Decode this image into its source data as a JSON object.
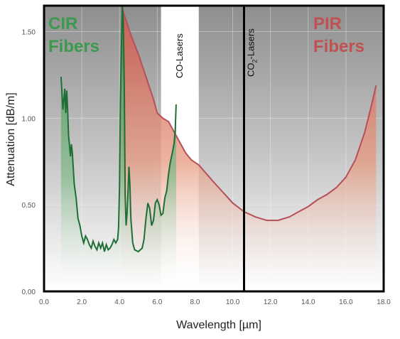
{
  "chart_data": {
    "type": "line",
    "xlabel": "Wavelength",
    "xunit": "[µm]",
    "ylabel": "Attenuation",
    "yunit": "[dB/m]",
    "xlim": [
      0,
      18
    ],
    "ylim": [
      0,
      1.65
    ],
    "x_ticks": [
      "0.0",
      "2.0",
      "4.0",
      "6.0",
      "8.0",
      "10.0",
      "12.0",
      "14.0",
      "16.0",
      "18.0"
    ],
    "y_ticks": [
      "0.00",
      "0.50",
      "1.00",
      "1.50"
    ],
    "regions": [
      {
        "label": "CO-Lasers",
        "x_range": [
          6.2,
          8.2
        ],
        "color": "#ffffff"
      },
      {
        "label": "CO",
        "subscript": "2",
        "label_suffix": "-Lasers",
        "x": 10.6,
        "color": "#000000"
      }
    ],
    "series": [
      {
        "name": "CIR Fibers",
        "color": "#2e8b46",
        "fill": "#5fa36a",
        "points": [
          [
            0.9,
            1.24
          ],
          [
            1.0,
            1.05
          ],
          [
            1.05,
            1.11
          ],
          [
            1.1,
            1.17
          ],
          [
            1.15,
            1.03
          ],
          [
            1.2,
            1.16
          ],
          [
            1.25,
            1.05
          ],
          [
            1.3,
            0.9
          ],
          [
            1.35,
            0.84
          ],
          [
            1.4,
            0.78
          ],
          [
            1.45,
            0.85
          ],
          [
            1.5,
            0.8
          ],
          [
            1.6,
            0.62
          ],
          [
            1.7,
            0.54
          ],
          [
            1.8,
            0.42
          ],
          [
            1.9,
            0.38
          ],
          [
            2.0,
            0.32
          ],
          [
            2.1,
            0.28
          ],
          [
            2.2,
            0.32
          ],
          [
            2.3,
            0.3
          ],
          [
            2.4,
            0.27
          ],
          [
            2.5,
            0.25
          ],
          [
            2.6,
            0.29
          ],
          [
            2.7,
            0.26
          ],
          [
            2.8,
            0.24
          ],
          [
            2.9,
            0.28
          ],
          [
            3.0,
            0.25
          ],
          [
            3.1,
            0.28
          ],
          [
            3.2,
            0.23
          ],
          [
            3.3,
            0.27
          ],
          [
            3.4,
            0.24
          ],
          [
            3.5,
            0.25
          ],
          [
            3.6,
            0.27
          ],
          [
            3.7,
            0.3
          ],
          [
            3.8,
            0.28
          ],
          [
            3.9,
            0.3
          ],
          [
            3.95,
            0.37
          ],
          [
            4.0,
            0.6
          ],
          [
            4.05,
            1.1
          ],
          [
            4.1,
            1.42
          ],
          [
            4.15,
            1.65
          ],
          [
            4.2,
            1.56
          ],
          [
            4.25,
            1.2
          ],
          [
            4.3,
            0.55
          ],
          [
            4.35,
            0.38
          ],
          [
            4.4,
            0.45
          ],
          [
            4.45,
            0.58
          ],
          [
            4.5,
            0.72
          ],
          [
            4.55,
            0.62
          ],
          [
            4.6,
            0.42
          ],
          [
            4.7,
            0.28
          ],
          [
            4.8,
            0.24
          ],
          [
            5.0,
            0.23
          ],
          [
            5.2,
            0.25
          ],
          [
            5.3,
            0.3
          ],
          [
            5.4,
            0.42
          ],
          [
            5.5,
            0.51
          ],
          [
            5.6,
            0.48
          ],
          [
            5.7,
            0.38
          ],
          [
            5.8,
            0.41
          ],
          [
            5.9,
            0.51
          ],
          [
            6.0,
            0.53
          ],
          [
            6.1,
            0.5
          ],
          [
            6.2,
            0.44
          ],
          [
            6.3,
            0.45
          ],
          [
            6.4,
            0.54
          ],
          [
            6.5,
            0.58
          ],
          [
            6.6,
            0.68
          ],
          [
            6.7,
            0.75
          ],
          [
            6.8,
            0.8
          ],
          [
            6.9,
            0.86
          ],
          [
            6.95,
            0.93
          ],
          [
            7.0,
            1.08
          ]
        ]
      },
      {
        "name": "PIR Fibers",
        "color": "#b5505a",
        "fill": "#d4705d",
        "points": [
          [
            4.1,
            1.65
          ],
          [
            4.3,
            1.58
          ],
          [
            4.6,
            1.48
          ],
          [
            5.0,
            1.37
          ],
          [
            5.4,
            1.24
          ],
          [
            5.8,
            1.11
          ],
          [
            6.0,
            1.03
          ],
          [
            6.3,
            1.0
          ],
          [
            6.6,
            0.98
          ],
          [
            6.9,
            0.92
          ],
          [
            7.2,
            0.86
          ],
          [
            7.5,
            0.8
          ],
          [
            7.8,
            0.76
          ],
          [
            8.2,
            0.73
          ],
          [
            8.6,
            0.68
          ],
          [
            9.0,
            0.63
          ],
          [
            9.5,
            0.57
          ],
          [
            10.0,
            0.51
          ],
          [
            10.6,
            0.46
          ],
          [
            11.2,
            0.43
          ],
          [
            11.8,
            0.41
          ],
          [
            12.4,
            0.41
          ],
          [
            13.0,
            0.43
          ],
          [
            13.5,
            0.46
          ],
          [
            14.0,
            0.49
          ],
          [
            14.5,
            0.53
          ],
          [
            15.0,
            0.56
          ],
          [
            15.5,
            0.6
          ],
          [
            16.0,
            0.66
          ],
          [
            16.5,
            0.76
          ],
          [
            17.0,
            0.92
          ],
          [
            17.3,
            1.05
          ],
          [
            17.6,
            1.19
          ]
        ]
      }
    ],
    "annotations": [
      {
        "text_line1": "CIR",
        "text_line2": "Fibers",
        "color": "#3a9a4e"
      },
      {
        "text_line1": "PIR",
        "text_line2": "Fibers",
        "color": "#c0514f"
      }
    ]
  }
}
